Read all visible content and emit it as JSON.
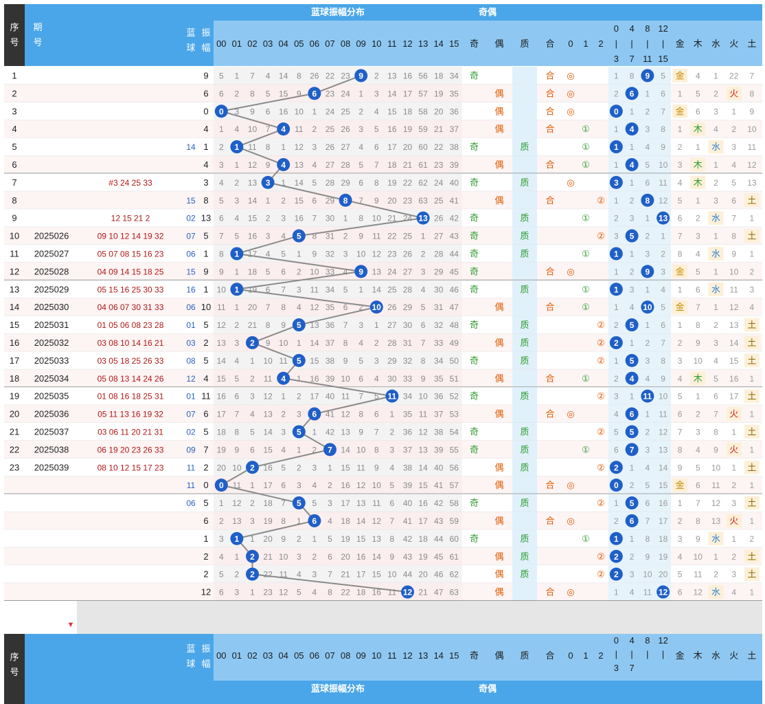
{
  "header": {
    "seq_label": "序号",
    "issue_label": "期号",
    "blue_label": "蓝球",
    "amp_label": "振幅",
    "amp_dist_title": "蓝球振幅分布",
    "oddeven_title": "奇偶",
    "amp_cols": [
      "00",
      "01",
      "02",
      "03",
      "04",
      "05",
      "06",
      "07",
      "08",
      "09",
      "10",
      "11",
      "12",
      "13",
      "14",
      "15"
    ],
    "odd_label": "奇",
    "even_label": "偶",
    "prime_label": "质",
    "comp_label": "合",
    "mod_cols": [
      "0",
      "1",
      "2"
    ],
    "range_cols_top": [
      "0-3",
      "4-7",
      "8-11",
      "12-15"
    ],
    "range_cols_bottom": [
      "0-3",
      "4-7",
      "8",
      "12"
    ],
    "wx_cols": [
      "金",
      "木",
      "水",
      "火",
      "土"
    ]
  },
  "rows": [
    {
      "seq": "1",
      "issue": "",
      "nums": "",
      "blue": "",
      "amp": 9,
      "cells": [
        9,
        5,
        1,
        7,
        4,
        14,
        8,
        26,
        22,
        23,
        null,
        2,
        13,
        16,
        56,
        18,
        34
      ],
      "oe": "奇",
      "pc": "合",
      "mod": 0,
      "rg": [
        1,
        8,
        null,
        5
      ],
      "wx": "金",
      "wxv": [
        null,
        4,
        1,
        22,
        7
      ]
    },
    {
      "seq": "2",
      "issue": "",
      "nums": "",
      "blue": "",
      "amp": 6,
      "cells": [
        6,
        6,
        2,
        8,
        5,
        15,
        9,
        null,
        23,
        24,
        1,
        3,
        14,
        17,
        57,
        19,
        35
      ],
      "oe": "偶",
      "pc": "合",
      "mod": 0,
      "rg": [
        2,
        null,
        1,
        6
      ],
      "wx": "火",
      "wxv": [
        1,
        5,
        2,
        null,
        8
      ]
    },
    {
      "seq": "3",
      "issue": "",
      "nums": "",
      "blue": "",
      "amp": 0,
      "cells": [
        0,
        null,
        3,
        9,
        6,
        16,
        10,
        1,
        24,
        25,
        2,
        4,
        15,
        18,
        58,
        20,
        36
      ],
      "oe": "偶",
      "pc": "合",
      "mod": 0,
      "rg": [
        null,
        1,
        2,
        7
      ],
      "wx": "金",
      "wxv": [
        null,
        6,
        3,
        1,
        9
      ]
    },
    {
      "seq": "4",
      "issue": "",
      "nums": "",
      "blue": "",
      "amp": 4,
      "cells": [
        4,
        1,
        4,
        10,
        7,
        null,
        11,
        2,
        25,
        26,
        3,
        5,
        16,
        19,
        59,
        21,
        37
      ],
      "oe": "偶",
      "pc": "合",
      "mod": 1,
      "rg": [
        1,
        null,
        3,
        8
      ],
      "wx": "木",
      "wxv": [
        1,
        null,
        4,
        2,
        10
      ]
    },
    {
      "seq": "5",
      "issue": "",
      "nums": "",
      "blue": "14",
      "amp": 1,
      "cells": [
        1,
        2,
        null,
        11,
        8,
        1,
        12,
        3,
        26,
        27,
        4,
        6,
        17,
        20,
        60,
        22,
        38
      ],
      "oe": "奇",
      "pc": "质",
      "mod": 1,
      "rg": [
        null,
        1,
        4,
        9
      ],
      "wx": "水",
      "wxv": [
        2,
        1,
        null,
        3,
        11
      ]
    },
    {
      "seq": "6",
      "issue": "",
      "nums": "",
      "blue": "",
      "amp": 4,
      "cells": [
        4,
        3,
        1,
        12,
        9,
        null,
        13,
        4,
        27,
        28,
        5,
        7,
        18,
        21,
        61,
        23,
        39
      ],
      "oe": "偶",
      "pc": "合",
      "mod": 1,
      "rg": [
        1,
        null,
        5,
        10
      ],
      "wx": "木",
      "wxv": [
        3,
        null,
        1,
        4,
        12
      ]
    },
    {
      "seq": "7",
      "issue": "",
      "nums": "#3 24 25 33",
      "blue": "",
      "amp": 3,
      "cells": [
        3,
        4,
        2,
        13,
        null,
        1,
        14,
        5,
        28,
        29,
        6,
        8,
        19,
        22,
        62,
        24,
        40
      ],
      "oe": "奇",
      "pc": "质",
      "mod": 0,
      "rg": [
        null,
        1,
        6,
        11
      ],
      "wx": "木",
      "wxv": [
        4,
        null,
        2,
        5,
        13
      ]
    },
    {
      "seq": "8",
      "issue": "",
      "nums": "",
      "blue": "15",
      "amp": 8,
      "cells": [
        8,
        5,
        3,
        14,
        1,
        2,
        15,
        6,
        29,
        null,
        7,
        9,
        20,
        23,
        63,
        25,
        41
      ],
      "oe": "偶",
      "pc": "合",
      "mod": 2,
      "rg": [
        1,
        2,
        null,
        12
      ],
      "wx": "土",
      "wxv": [
        5,
        1,
        3,
        6,
        null
      ]
    },
    {
      "seq": "9",
      "issue": "",
      "nums": "12 15 21 2",
      "blue": "02",
      "amp": 13,
      "cells": [
        13,
        6,
        4,
        15,
        2,
        3,
        16,
        7,
        30,
        1,
        8,
        10,
        21,
        24,
        null,
        26,
        42
      ],
      "oe": "奇",
      "pc": "质",
      "mod": 1,
      "rg": [
        2,
        3,
        1,
        null
      ],
      "wx": "水",
      "wxv": [
        6,
        2,
        null,
        7,
        1
      ]
    },
    {
      "seq": "10",
      "issue": "2025026",
      "nums": "09 10 12 14 19 32",
      "blue": "07",
      "amp": 5,
      "cells": [
        5,
        7,
        5,
        16,
        3,
        4,
        null,
        8,
        31,
        2,
        9,
        11,
        22,
        25,
        1,
        27,
        43
      ],
      "oe": "奇",
      "pc": "质",
      "mod": 2,
      "rg": [
        3,
        null,
        2,
        1
      ],
      "wx": "土",
      "wxv": [
        7,
        3,
        1,
        8,
        null
      ]
    },
    {
      "seq": "11",
      "issue": "2025027",
      "nums": "05 07 08 15 16 23",
      "blue": "06",
      "amp": 1,
      "cells": [
        1,
        8,
        null,
        17,
        4,
        5,
        1,
        9,
        32,
        3,
        10,
        12,
        23,
        26,
        2,
        28,
        44
      ],
      "oe": "奇",
      "pc": "质",
      "mod": 1,
      "rg": [
        null,
        1,
        3,
        2
      ],
      "wx": "水",
      "wxv": [
        8,
        4,
        null,
        9,
        1
      ]
    },
    {
      "seq": "12",
      "issue": "2025028",
      "nums": "04 09 14 15 18 25",
      "blue": "15",
      "amp": 9,
      "cells": [
        9,
        9,
        1,
        18,
        5,
        6,
        2,
        10,
        33,
        4,
        null,
        13,
        24,
        27,
        3,
        29,
        45
      ],
      "oe": "奇",
      "pc": "合",
      "mod": 0,
      "rg": [
        1,
        2,
        null,
        3
      ],
      "wx": "金",
      "wxv": [
        null,
        5,
        1,
        10,
        2
      ]
    },
    {
      "seq": "13",
      "issue": "2025029",
      "nums": "05 15 16 25 30 33",
      "blue": "16",
      "amp": 1,
      "cells": [
        1,
        10,
        null,
        19,
        6,
        7,
        3,
        11,
        34,
        5,
        1,
        14,
        25,
        28,
        4,
        30,
        46
      ],
      "oe": "奇",
      "pc": "质",
      "mod": 1,
      "rg": [
        null,
        3,
        1,
        4
      ],
      "wx": "水",
      "wxv": [
        1,
        6,
        null,
        11,
        3
      ]
    },
    {
      "seq": "14",
      "issue": "2025030",
      "nums": "04 06 07 30 31 33",
      "blue": "06",
      "amp": 10,
      "cells": [
        10,
        11,
        1,
        20,
        7,
        8,
        4,
        12,
        35,
        6,
        2,
        null,
        26,
        29,
        5,
        31,
        47
      ],
      "oe": "偶",
      "pc": "合",
      "mod": 1,
      "rg": [
        1,
        4,
        null,
        5
      ],
      "wx": "金",
      "wxv": [
        null,
        7,
        1,
        12,
        4
      ]
    },
    {
      "seq": "15",
      "issue": "2025031",
      "nums": "01 05 06 08 23 28",
      "blue": "01",
      "amp": 5,
      "cells": [
        5,
        12,
        2,
        21,
        8,
        9,
        null,
        13,
        36,
        7,
        3,
        1,
        27,
        30,
        6,
        32,
        48
      ],
      "oe": "奇",
      "pc": "质",
      "mod": 2,
      "rg": [
        2,
        null,
        1,
        6
      ],
      "wx": "土",
      "wxv": [
        1,
        8,
        2,
        13,
        null
      ]
    },
    {
      "seq": "16",
      "issue": "2025032",
      "nums": "03 08 10 14 16 21",
      "blue": "03",
      "amp": 2,
      "cells": [
        2,
        13,
        3,
        null,
        9,
        10,
        1,
        14,
        37,
        8,
        4,
        2,
        28,
        31,
        7,
        33,
        49
      ],
      "oe": "偶",
      "pc": "质",
      "mod": 2,
      "rg": [
        null,
        1,
        2,
        7
      ],
      "wx": "土",
      "wxv": [
        2,
        9,
        3,
        14,
        null
      ]
    },
    {
      "seq": "17",
      "issue": "2025033",
      "nums": "03 05 18 25 26 33",
      "blue": "08",
      "amp": 5,
      "cells": [
        5,
        14,
        4,
        1,
        10,
        11,
        null,
        15,
        38,
        9,
        5,
        3,
        29,
        32,
        8,
        34,
        50
      ],
      "oe": "奇",
      "pc": "质",
      "mod": 2,
      "rg": [
        1,
        null,
        3,
        8
      ],
      "wx": "土",
      "wxv": [
        3,
        10,
        4,
        15,
        null
      ]
    },
    {
      "seq": "18",
      "issue": "2025034",
      "nums": "05 08 13 14 24 26",
      "blue": "12",
      "amp": 4,
      "cells": [
        4,
        15,
        5,
        2,
        11,
        null,
        1,
        16,
        39,
        10,
        6,
        4,
        30,
        33,
        9,
        35,
        51
      ],
      "oe": "偶",
      "pc": "合",
      "mod": 1,
      "rg": [
        2,
        null,
        4,
        9
      ],
      "wx": "木",
      "wxv": [
        4,
        null,
        5,
        16,
        1
      ]
    },
    {
      "seq": "19",
      "issue": "2025035",
      "nums": "01 08 16 18 25 31",
      "blue": "01",
      "amp": 11,
      "cells": [
        11,
        16,
        6,
        3,
        12,
        1,
        2,
        17,
        40,
        11,
        7,
        5,
        null,
        34,
        10,
        36,
        52
      ],
      "oe": "奇",
      "pc": "质",
      "mod": 2,
      "rg": [
        3,
        1,
        null,
        10
      ],
      "wx": "土",
      "wxv": [
        5,
        1,
        6,
        17,
        null
      ]
    },
    {
      "seq": "20",
      "issue": "2025036",
      "nums": "05 11 13 16 19 32",
      "blue": "07",
      "amp": 6,
      "cells": [
        6,
        17,
        7,
        4,
        13,
        2,
        3,
        null,
        41,
        12,
        8,
        6,
        1,
        35,
        11,
        37,
        53
      ],
      "oe": "偶",
      "pc": "合",
      "mod": 0,
      "rg": [
        4,
        null,
        1,
        11
      ],
      "wx": "火",
      "wxv": [
        6,
        2,
        7,
        null,
        1
      ]
    },
    {
      "seq": "21",
      "issue": "2025037",
      "nums": "03 06 11 20 21 31",
      "blue": "02",
      "amp": 5,
      "cells": [
        5,
        18,
        8,
        5,
        14,
        3,
        null,
        1,
        42,
        13,
        9,
        7,
        2,
        36,
        12,
        38,
        54
      ],
      "oe": "奇",
      "pc": "质",
      "mod": 2,
      "rg": [
        5,
        null,
        2,
        12
      ],
      "wx": "土",
      "wxv": [
        7,
        3,
        8,
        1,
        null
      ]
    },
    {
      "seq": "22",
      "issue": "2025038",
      "nums": "06 19 20 23 26 33",
      "blue": "09",
      "amp": 7,
      "cells": [
        7,
        19,
        9,
        6,
        15,
        4,
        1,
        2,
        null,
        14,
        10,
        8,
        3,
        37,
        13,
        39,
        55
      ],
      "oe": "奇",
      "pc": "质",
      "mod": 1,
      "rg": [
        6,
        null,
        3,
        13
      ],
      "wx": "火",
      "wxv": [
        8,
        4,
        9,
        null,
        1
      ]
    },
    {
      "seq": "23",
      "issue": "2025039",
      "nums": "08 10 12 15 17 23",
      "blue": "11",
      "amp": 2,
      "cells": [
        2,
        20,
        10,
        null,
        16,
        5,
        2,
        3,
        1,
        15,
        11,
        9,
        4,
        38,
        14,
        40,
        56
      ],
      "oe": "偶",
      "pc": "质",
      "mod": 2,
      "rg": [
        null,
        1,
        4,
        14
      ],
      "wx": "土",
      "wxv": [
        9,
        5,
        10,
        1,
        null
      ]
    },
    {
      "seq": "",
      "issue": "",
      "nums": "",
      "blue": "11",
      "amp": 0,
      "cells": [
        0,
        null,
        11,
        1,
        17,
        6,
        3,
        4,
        2,
        16,
        12,
        10,
        5,
        39,
        15,
        41,
        57
      ],
      "oe": "偶",
      "pc": "合",
      "mod": 0,
      "rg": [
        null,
        2,
        5,
        15
      ],
      "wx": "金",
      "wxv": [
        null,
        6,
        11,
        2,
        1
      ]
    },
    {
      "seq": "",
      "issue": "",
      "nums": "",
      "blue": "06",
      "amp": 5,
      "cells": [
        5,
        1,
        12,
        2,
        18,
        7,
        null,
        5,
        3,
        17,
        13,
        11,
        6,
        40,
        16,
        42,
        58
      ],
      "oe": "奇",
      "pc": "质",
      "mod": 2,
      "rg": [
        1,
        null,
        6,
        16
      ],
      "wx": "土",
      "wxv": [
        1,
        7,
        12,
        3,
        null
      ]
    },
    {
      "seq": "",
      "issue": "",
      "nums": "",
      "blue": "",
      "amp": 6,
      "cells": [
        6,
        2,
        13,
        3,
        19,
        8,
        1,
        null,
        4,
        18,
        14,
        12,
        7,
        41,
        17,
        43,
        59
      ],
      "oe": "偶",
      "pc": "合",
      "mod": 0,
      "rg": [
        2,
        null,
        7,
        17
      ],
      "wx": "火",
      "wxv": [
        2,
        8,
        13,
        null,
        1
      ]
    },
    {
      "seq": "",
      "issue": "",
      "nums": "",
      "blue": "",
      "amp": 1,
      "cells": [
        1,
        3,
        null,
        1,
        20,
        9,
        2,
        1,
        5,
        19,
        15,
        13,
        8,
        42,
        18,
        44,
        60
      ],
      "oe": "奇",
      "pc": "质",
      "mod": 1,
      "rg": [
        null,
        1,
        8,
        18
      ],
      "wx": "水",
      "wxv": [
        3,
        9,
        null,
        1,
        2
      ]
    },
    {
      "seq": "",
      "issue": "",
      "nums": "",
      "blue": "",
      "amp": 2,
      "cells": [
        2,
        4,
        1,
        null,
        21,
        10,
        3,
        2,
        6,
        20,
        16,
        14,
        9,
        43,
        19,
        45,
        61
      ],
      "oe": "偶",
      "pc": "质",
      "mod": 2,
      "rg": [
        null,
        2,
        9,
        19
      ],
      "wx": "土",
      "wxv": [
        4,
        10,
        1,
        2,
        null
      ]
    },
    {
      "seq": "",
      "issue": "",
      "nums": "",
      "blue": "",
      "amp": 2,
      "cells": [
        2,
        5,
        2,
        null,
        22,
        11,
        4,
        3,
        7,
        21,
        17,
        15,
        10,
        44,
        20,
        46,
        62
      ],
      "oe": "偶",
      "pc": "质",
      "mod": 2,
      "rg": [
        null,
        3,
        10,
        20
      ],
      "wx": "土",
      "wxv": [
        5,
        11,
        2,
        3,
        null
      ]
    },
    {
      "seq": "",
      "issue": "",
      "nums": "",
      "blue": "",
      "amp": 12,
      "cells": [
        12,
        6,
        3,
        1,
        23,
        12,
        5,
        4,
        8,
        22,
        18,
        16,
        11,
        null,
        21,
        47,
        63
      ],
      "oe": "偶",
      "pc": "合",
      "mod": 0,
      "rg": [
        1,
        4,
        11,
        null
      ],
      "wx": "水",
      "wxv": [
        6,
        12,
        null,
        4,
        1
      ]
    }
  ],
  "colors": {
    "header_blue": "#4aa6e8",
    "header_light": "#8ec8f2",
    "odd_green": "#2e9b2e",
    "even_orange": "#e05a00",
    "ball_blue": "#1f5fc8",
    "row_pink": "#fbeaea",
    "row_white": "#ffffff",
    "trend_line": "#8a8a8a"
  }
}
